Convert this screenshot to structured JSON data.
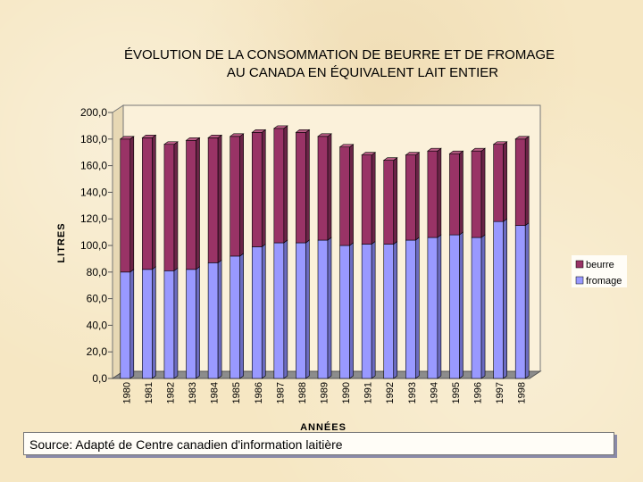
{
  "chart_data": {
    "type": "bar",
    "stacked": true,
    "title_lines": [
      "ÉVOLUTION DE LA CONSOMMATION DE BEURRE ET DE FROMAGE",
      "AU CANADA EN ÉQUIVALENT LAIT ENTIER"
    ],
    "xlabel": "ANNÉES",
    "ylabel": "LITRES",
    "ylim": [
      0,
      200
    ],
    "yticks": [
      "200,0",
      "180,0",
      "160,0",
      "140,0",
      "120,0",
      "100,0",
      "80,0",
      "60,0",
      "40,0",
      "20,0",
      "0,0"
    ],
    "ytick_values": [
      200,
      180,
      160,
      140,
      120,
      100,
      80,
      60,
      40,
      20,
      0
    ],
    "categories": [
      "1980",
      "1981",
      "1982",
      "1983",
      "1984",
      "1985",
      "1986",
      "1987",
      "1988",
      "1989",
      "1990",
      "1991",
      "1992",
      "1993",
      "1994",
      "1995",
      "1996",
      "1997",
      "1998"
    ],
    "series": [
      {
        "name": "fromage",
        "color": "#9999ff",
        "values": [
          80,
          82,
          81,
          82,
          87,
          92,
          99,
          102,
          102,
          104,
          100,
          101,
          101,
          104,
          106,
          108,
          106,
          118,
          115
        ]
      },
      {
        "name": "beurre",
        "color": "#993366",
        "values": [
          100,
          99,
          95,
          97,
          94,
          90,
          86,
          86,
          83,
          78,
          74,
          67,
          63,
          64,
          65,
          61,
          65,
          58,
          65
        ]
      }
    ],
    "legend": {
      "position": "right",
      "entries": [
        "beurre",
        "fromage"
      ]
    },
    "grid": false,
    "source": "Source:  Adapté de Centre canadien d'information laitière"
  }
}
